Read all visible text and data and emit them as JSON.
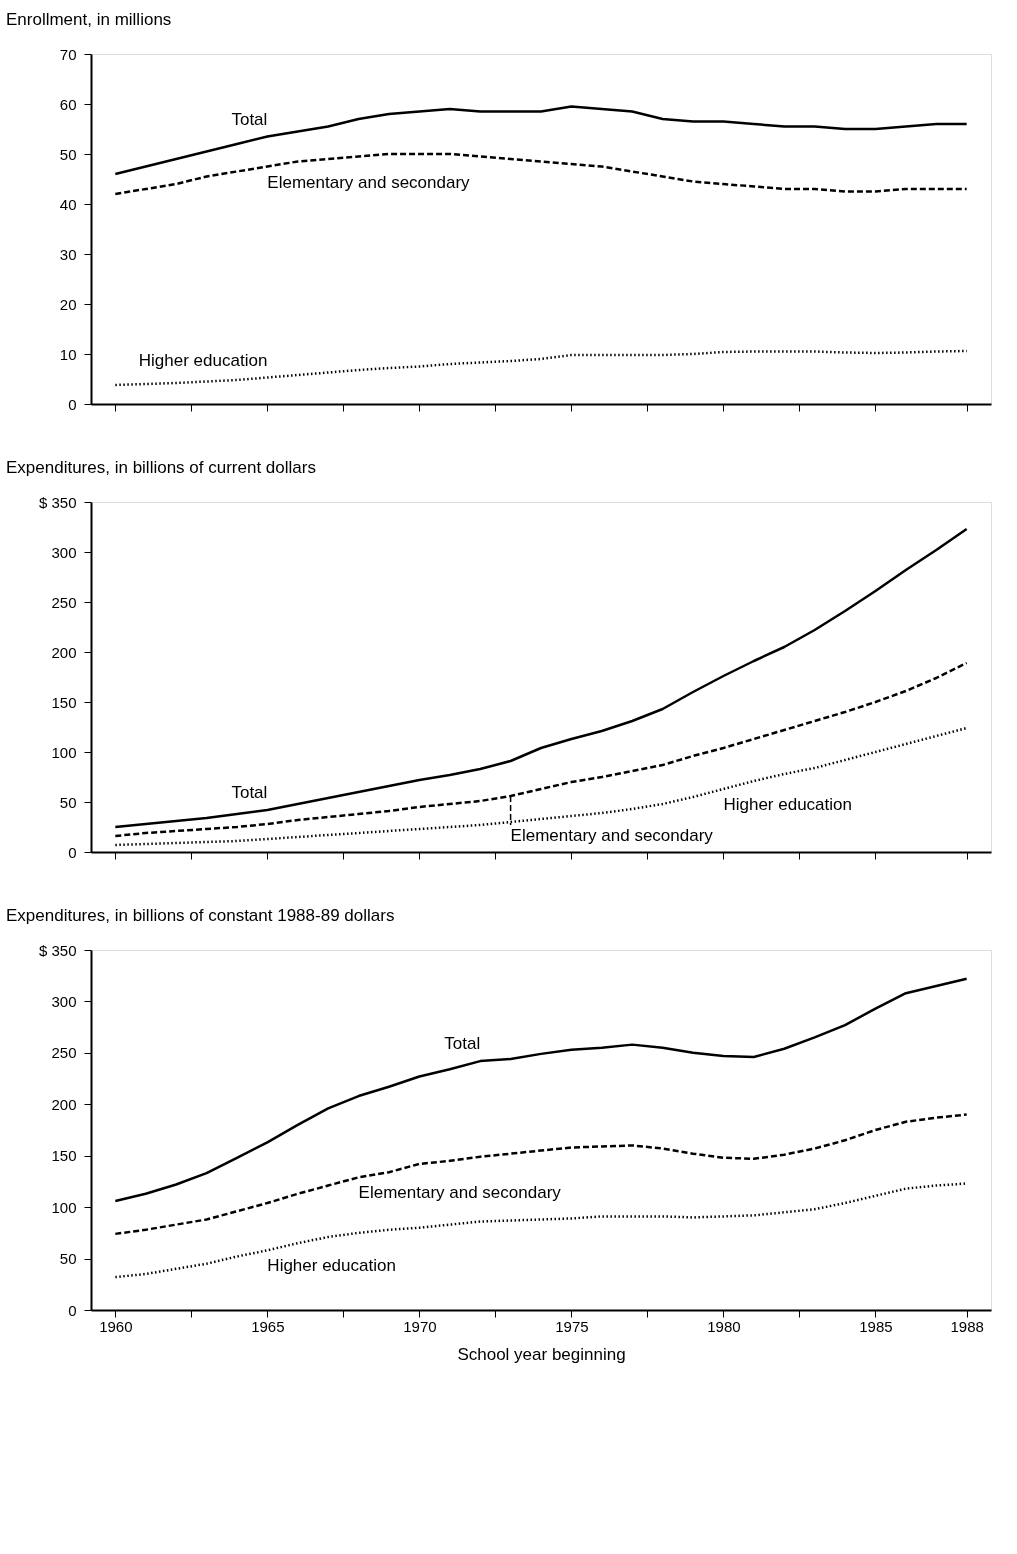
{
  "chart_data": [
    {
      "type": "line",
      "title": "Enrollment, in millions",
      "tick_labels": "y",
      "grid": false,
      "marker": "none",
      "x": [
        1960,
        1961,
        1962,
        1963,
        1964,
        1965,
        1966,
        1967,
        1968,
        1969,
        1970,
        1971,
        1972,
        1973,
        1974,
        1975,
        1976,
        1977,
        1978,
        1979,
        1980,
        1981,
        1982,
        1983,
        1984,
        1985,
        1986,
        1987,
        1988
      ],
      "xlim": [
        1959.2,
        1988.8
      ],
      "xticks": [
        {
          "value": 1960,
          "label": null
        },
        {
          "value": 1962.5,
          "label": null
        },
        {
          "value": 1965,
          "label": null
        },
        {
          "value": 1967.5,
          "label": null
        },
        {
          "value": 1970,
          "label": null
        },
        {
          "value": 1972.5,
          "label": null
        },
        {
          "value": 1975,
          "label": null
        },
        {
          "value": 1977.5,
          "label": null
        },
        {
          "value": 1980,
          "label": null
        },
        {
          "value": 1982.5,
          "label": null
        },
        {
          "value": 1985,
          "label": null
        },
        {
          "value": 1988,
          "label": null
        }
      ],
      "ylim": [
        0,
        70
      ],
      "yticks": [
        0,
        10,
        20,
        30,
        40,
        50,
        60,
        70
      ],
      "series": [
        {
          "name": "Total",
          "color": "#000000",
          "line_style": "solid",
          "values": [
            46,
            47.5,
            49,
            50.5,
            52,
            53.5,
            54.5,
            55.5,
            57,
            58,
            58.5,
            59,
            58.5,
            58.5,
            58.5,
            59.5,
            59,
            58.5,
            57,
            56.5,
            56.5,
            56,
            55.5,
            55.5,
            55,
            55,
            55.5,
            56,
            56
          ]
        },
        {
          "name": "Elementary and secondary",
          "color": "#000000",
          "line_style": "dashed",
          "values": [
            42,
            43,
            44,
            45.5,
            46.5,
            47.5,
            48.5,
            49,
            49.5,
            50,
            50,
            50,
            49.5,
            49,
            48.5,
            48,
            47.5,
            46.5,
            45.5,
            44.5,
            44,
            43.5,
            43,
            43,
            42.5,
            42.5,
            43,
            43,
            43
          ]
        },
        {
          "name": "Higher education",
          "color": "#000000",
          "line_style": "dotted",
          "values": [
            3.8,
            4,
            4.2,
            4.5,
            4.8,
            5.3,
            5.8,
            6.3,
            6.8,
            7.2,
            7.5,
            8,
            8.3,
            8.6,
            9,
            9.8,
            9.8,
            9.8,
            9.8,
            10,
            10.4,
            10.5,
            10.5,
            10.5,
            10.3,
            10.2,
            10.3,
            10.5,
            10.6
          ]
        }
      ]
    },
    {
      "type": "line",
      "title": "Expenditures, in billions of current dollars",
      "tick_labels": "y",
      "grid": false,
      "marker": "none",
      "x": [
        1960,
        1961,
        1962,
        1963,
        1964,
        1965,
        1966,
        1967,
        1968,
        1969,
        1970,
        1971,
        1972,
        1973,
        1974,
        1975,
        1976,
        1977,
        1978,
        1979,
        1980,
        1981,
        1982,
        1983,
        1984,
        1985,
        1986,
        1987,
        1988
      ],
      "xlim": [
        1959.2,
        1988.8
      ],
      "xticks": [
        {
          "value": 1960,
          "label": null
        },
        {
          "value": 1962.5,
          "label": null
        },
        {
          "value": 1965,
          "label": null
        },
        {
          "value": 1967.5,
          "label": null
        },
        {
          "value": 1970,
          "label": null
        },
        {
          "value": 1972.5,
          "label": null
        },
        {
          "value": 1975,
          "label": null
        },
        {
          "value": 1977.5,
          "label": null
        },
        {
          "value": 1980,
          "label": null
        },
        {
          "value": 1982.5,
          "label": null
        },
        {
          "value": 1985,
          "label": null
        },
        {
          "value": 1988,
          "label": null
        }
      ],
      "ylim": [
        0,
        350
      ],
      "yticks": [
        0,
        50,
        100,
        150,
        200,
        250,
        300,
        {
          "value": 350,
          "label": "$ 350"
        }
      ],
      "series": [
        {
          "name": "Total",
          "color": "#000000",
          "line_style": "solid",
          "values": [
            25,
            28,
            31,
            34,
            38,
            42,
            48,
            54,
            60,
            66,
            72,
            77,
            83,
            91,
            104,
            113,
            121,
            131,
            143,
            160,
            176,
            191,
            205,
            222,
            241,
            261,
            282,
            302,
            323
          ]
        },
        {
          "name": "Elementary and secondary",
          "color": "#000000",
          "line_style": "dashed",
          "values": [
            16,
            19,
            21,
            23,
            25,
            28,
            32,
            35,
            38,
            41,
            45,
            48,
            51,
            56,
            63,
            70,
            75,
            81,
            87,
            96,
            104,
            113,
            122,
            131,
            140,
            150,
            161,
            174,
            189
          ]
        },
        {
          "name": "Higher education",
          "color": "#000000",
          "line_style": "dotted",
          "values": [
            7,
            8,
            9,
            10,
            11,
            13,
            15,
            17,
            19,
            21,
            23,
            25,
            27,
            30,
            33,
            36,
            39,
            43,
            48,
            55,
            63,
            71,
            78,
            84,
            92,
            100,
            108,
            116,
            124
          ]
        }
      ]
    },
    {
      "type": "line",
      "title": "Expenditures, in billions of constant 1988-89 dollars",
      "xlabel": "School year beginning",
      "grid": false,
      "marker": "none",
      "x": [
        1960,
        1961,
        1962,
        1963,
        1964,
        1965,
        1966,
        1967,
        1968,
        1969,
        1970,
        1971,
        1972,
        1973,
        1974,
        1975,
        1976,
        1977,
        1978,
        1979,
        1980,
        1981,
        1982,
        1983,
        1984,
        1985,
        1986,
        1987,
        1988
      ],
      "xlim": [
        1959.2,
        1988.8
      ],
      "xticks": [
        1960,
        {
          "value": 1962.5,
          "label": null
        },
        1965,
        {
          "value": 1967.5,
          "label": null
        },
        1970,
        {
          "value": 1972.5,
          "label": null
        },
        1975,
        {
          "value": 1977.5,
          "label": null
        },
        1980,
        {
          "value": 1982.5,
          "label": null
        },
        1985,
        1988
      ],
      "ylim": [
        0,
        350
      ],
      "yticks": [
        0,
        50,
        100,
        150,
        200,
        250,
        300,
        {
          "value": 350,
          "label": "$ 350"
        }
      ],
      "series": [
        {
          "name": "Total",
          "color": "#000000",
          "line_style": "solid",
          "values": [
            106,
            113,
            122,
            133,
            148,
            163,
            180,
            196,
            208,
            217,
            227,
            234,
            242,
            244,
            249,
            253,
            255,
            258,
            255,
            250,
            247,
            246,
            254,
            265,
            277,
            293,
            308,
            315,
            322
          ]
        },
        {
          "name": "Elementary and secondary",
          "color": "#000000",
          "line_style": "dashed",
          "values": [
            74,
            78,
            83,
            88,
            96,
            104,
            113,
            121,
            129,
            134,
            142,
            145,
            149,
            152,
            155,
            158,
            159,
            160,
            157,
            152,
            148,
            147,
            151,
            157,
            165,
            175,
            183,
            187,
            190
          ]
        },
        {
          "name": "Higher education",
          "color": "#000000",
          "line_style": "dotted",
          "values": [
            32,
            35,
            40,
            45,
            52,
            58,
            65,
            71,
            75,
            78,
            80,
            83,
            86,
            87,
            88,
            89,
            91,
            91,
            91,
            90,
            91,
            92,
            95,
            98,
            104,
            111,
            118,
            121,
            123
          ]
        }
      ]
    }
  ]
}
